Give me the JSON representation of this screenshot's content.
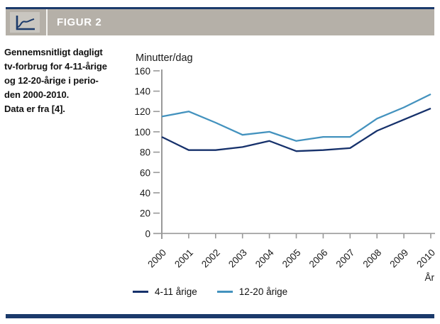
{
  "header": {
    "figure_label": "FIGUR 2",
    "accent_color": "#1b3a6b",
    "band_color": "#b5b0a8"
  },
  "caption": {
    "lines": [
      "Gennemsnitligt dagligt",
      "tv-forbrug for 4-11-årige",
      "og 12-20-årige i perio-",
      "den 2000-2010.",
      "Data er fra [4]."
    ]
  },
  "chart_data": {
    "type": "line",
    "title": "",
    "ylabel": "Minutter/dag",
    "xlabel": "År",
    "categories": [
      "2000",
      "2001",
      "2002",
      "2003",
      "2004",
      "2005",
      "2006",
      "2007",
      "2008",
      "2009",
      "2010"
    ],
    "series": [
      {
        "name": "4-11 årige",
        "color": "#16316b",
        "values": [
          95,
          82,
          82,
          85,
          91,
          81,
          82,
          84,
          101,
          112,
          123
        ]
      },
      {
        "name": "12-20 årige",
        "color": "#4392be",
        "values": [
          115,
          120,
          109,
          97,
          100,
          91,
          95,
          95,
          113,
          124,
          137
        ]
      }
    ],
    "ylim": [
      0,
      160
    ],
    "yticks": [
      0,
      20,
      40,
      60,
      80,
      100,
      120,
      140,
      160
    ],
    "axis_color": "#999999",
    "grid": false,
    "legend_position": "bottom"
  }
}
